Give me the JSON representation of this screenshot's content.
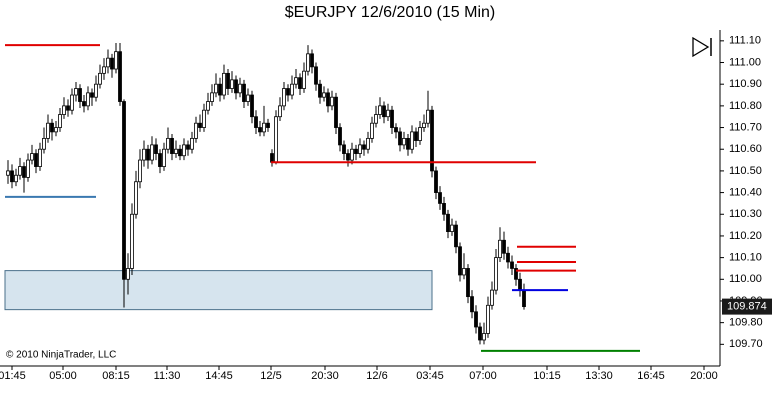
{
  "chart_data": {
    "type": "candlestick",
    "title": "$EURJPY  12/6/2010 (15 Min)",
    "copyright": "© 2010 NinjaTrader, LLC",
    "ylim": [
      109.6,
      111.15
    ],
    "yticks": [
      {
        "value": 111.1,
        "label": "111.10"
      },
      {
        "value": 111.0,
        "label": "111.00"
      },
      {
        "value": 110.9,
        "label": "110.90"
      },
      {
        "value": 110.8,
        "label": "110.80"
      },
      {
        "value": 110.7,
        "label": "110.70"
      },
      {
        "value": 110.6,
        "label": "110.60"
      },
      {
        "value": 110.5,
        "label": "110.50"
      },
      {
        "value": 110.4,
        "label": "110.40"
      },
      {
        "value": 110.3,
        "label": "110.30"
      },
      {
        "value": 110.2,
        "label": "110.20"
      },
      {
        "value": 110.1,
        "label": "110.10"
      },
      {
        "value": 110.0,
        "label": "110.00"
      },
      {
        "value": 109.9,
        "label": "109.90"
      },
      {
        "value": 109.8,
        "label": "109.80"
      },
      {
        "value": 109.7,
        "label": "109.70"
      }
    ],
    "xlim": [
      -2,
      178
    ],
    "xticks": [
      {
        "value": 1,
        "label": "01:45"
      },
      {
        "value": 13.75,
        "label": "05:00"
      },
      {
        "value": 27,
        "label": "08:15"
      },
      {
        "value": 39.75,
        "label": "11:30"
      },
      {
        "value": 52.75,
        "label": "14:45"
      },
      {
        "value": 65.75,
        "label": "12/5"
      },
      {
        "value": 79.25,
        "label": "20:30"
      },
      {
        "value": 92.25,
        "label": "12/6"
      },
      {
        "value": 105.5,
        "label": "03:45"
      },
      {
        "value": 118.75,
        "label": "07:00"
      },
      {
        "value": 134.75,
        "label": "10:15"
      },
      {
        "value": 147.75,
        "label": "13:30"
      },
      {
        "value": 160.75,
        "label": "16:45"
      },
      {
        "value": 174,
        "label": "20:00"
      }
    ],
    "up_color": "#ffffff",
    "down_color": "#000000",
    "last_price": 109.874,
    "zone": {
      "top": 110.04,
      "bottom": 109.86,
      "start": -0.75,
      "end": 106,
      "color": "#d6e4ee"
    },
    "levels": [
      {
        "price": 111.08,
        "start": -0.75,
        "end": 23,
        "color": "#e00000"
      },
      {
        "price": 110.38,
        "start": -0.75,
        "end": 22,
        "color": "#3a78b0"
      },
      {
        "price": 110.54,
        "start": 65.75,
        "end": 132,
        "color": "#e00000"
      },
      {
        "price": 110.15,
        "start": 127.25,
        "end": 142,
        "color": "#e00000"
      },
      {
        "price": 110.08,
        "start": 127.25,
        "end": 142,
        "color": "#e00000"
      },
      {
        "price": 110.04,
        "start": 127,
        "end": 142,
        "color": "#e00000"
      },
      {
        "price": 109.95,
        "start": 126,
        "end": 140,
        "color": "#0000e0"
      },
      {
        "price": 109.67,
        "start": 118.25,
        "end": 158,
        "color": "#008000"
      }
    ],
    "ohlc": [
      [
        110.48,
        110.55,
        110.44,
        110.5
      ],
      [
        110.5,
        110.53,
        110.42,
        110.45
      ],
      [
        110.45,
        110.51,
        110.43,
        110.48
      ],
      [
        110.48,
        110.56,
        110.46,
        110.52
      ],
      [
        110.52,
        110.54,
        110.4,
        110.47
      ],
      [
        110.47,
        110.58,
        110.45,
        110.55
      ],
      [
        110.55,
        110.62,
        110.53,
        110.58
      ],
      [
        110.58,
        110.6,
        110.49,
        110.52
      ],
      [
        110.52,
        110.63,
        110.5,
        110.6
      ],
      [
        110.6,
        110.7,
        110.58,
        110.65
      ],
      [
        110.65,
        110.76,
        110.63,
        110.72
      ],
      [
        110.72,
        110.74,
        110.64,
        110.68
      ],
      [
        110.68,
        110.73,
        110.66,
        110.7
      ],
      [
        110.7,
        110.79,
        110.68,
        110.76
      ],
      [
        110.76,
        110.84,
        110.74,
        110.8
      ],
      [
        110.8,
        110.83,
        110.75,
        110.78
      ],
      [
        110.78,
        110.88,
        110.76,
        110.85
      ],
      [
        110.85,
        110.91,
        110.82,
        110.88
      ],
      [
        110.88,
        110.9,
        110.79,
        110.82
      ],
      [
        110.82,
        110.85,
        110.77,
        110.8
      ],
      [
        110.8,
        110.89,
        110.78,
        110.86
      ],
      [
        110.86,
        110.88,
        110.8,
        110.84
      ],
      [
        110.84,
        110.94,
        110.82,
        110.9
      ],
      [
        110.9,
        110.99,
        110.88,
        110.95
      ],
      [
        110.95,
        111.02,
        110.92,
        110.98
      ],
      [
        110.98,
        111.06,
        110.95,
        111.02
      ],
      [
        111.02,
        111.04,
        110.93,
        110.97
      ],
      [
        110.97,
        111.09,
        110.95,
        111.05
      ],
      [
        111.05,
        111.09,
        110.8,
        110.82
      ],
      [
        110.82,
        110.83,
        109.87,
        110.0
      ],
      [
        110.0,
        110.12,
        109.93,
        110.05
      ],
      [
        110.05,
        110.35,
        110.02,
        110.3
      ],
      [
        110.3,
        110.5,
        110.28,
        110.45
      ],
      [
        110.45,
        110.6,
        110.42,
        110.55
      ],
      [
        110.55,
        110.64,
        110.52,
        110.6
      ],
      [
        110.6,
        110.62,
        110.51,
        110.55
      ],
      [
        110.55,
        110.66,
        110.53,
        110.62
      ],
      [
        110.62,
        110.65,
        110.55,
        110.58
      ],
      [
        110.58,
        110.6,
        110.49,
        110.52
      ],
      [
        110.52,
        110.63,
        110.5,
        110.6
      ],
      [
        110.6,
        110.7,
        110.58,
        110.65
      ],
      [
        110.65,
        110.67,
        110.55,
        110.58
      ],
      [
        110.58,
        110.64,
        110.56,
        110.6
      ],
      [
        110.6,
        110.62,
        110.55,
        110.57
      ],
      [
        110.57,
        110.65,
        110.55,
        110.62
      ],
      [
        110.62,
        110.64,
        110.57,
        110.6
      ],
      [
        110.6,
        110.68,
        110.58,
        110.65
      ],
      [
        110.65,
        110.75,
        110.63,
        110.72
      ],
      [
        110.72,
        110.76,
        110.68,
        110.7
      ],
      [
        110.7,
        110.81,
        110.68,
        110.78
      ],
      [
        110.78,
        110.86,
        110.76,
        110.82
      ],
      [
        110.82,
        110.9,
        110.8,
        110.86
      ],
      [
        110.86,
        110.95,
        110.84,
        110.9
      ],
      [
        110.9,
        110.93,
        110.82,
        110.85
      ],
      [
        110.85,
        110.99,
        110.83,
        110.95
      ],
      [
        110.95,
        110.97,
        110.85,
        110.88
      ],
      [
        110.88,
        110.96,
        110.86,
        110.92
      ],
      [
        110.92,
        110.94,
        110.83,
        110.86
      ],
      [
        110.86,
        110.93,
        110.84,
        110.9
      ],
      [
        110.9,
        110.92,
        110.79,
        110.82
      ],
      [
        110.82,
        110.88,
        110.8,
        110.85
      ],
      [
        110.85,
        110.87,
        110.72,
        110.75
      ],
      [
        110.75,
        110.78,
        110.67,
        110.7
      ],
      [
        110.7,
        110.73,
        110.66,
        110.68
      ],
      [
        110.68,
        110.8,
        110.66,
        110.72
      ],
      [
        110.72,
        110.74,
        110.68,
        110.7
      ],
      [
        110.58,
        110.6,
        110.52,
        110.54
      ],
      [
        110.54,
        110.78,
        110.53,
        110.75
      ],
      [
        110.75,
        110.84,
        110.73,
        110.8
      ],
      [
        110.8,
        110.91,
        110.78,
        110.88
      ],
      [
        110.88,
        110.9,
        110.82,
        110.85
      ],
      [
        110.85,
        110.94,
        110.83,
        110.9
      ],
      [
        110.9,
        110.97,
        110.88,
        110.93
      ],
      [
        110.93,
        110.95,
        110.85,
        110.88
      ],
      [
        110.88,
        111.0,
        110.86,
        110.96
      ],
      [
        110.96,
        111.08,
        110.94,
        111.04
      ],
      [
        111.04,
        111.06,
        110.95,
        110.98
      ],
      [
        110.98,
        111.0,
        110.87,
        110.9
      ],
      [
        110.9,
        110.92,
        110.81,
        110.84
      ],
      [
        110.84,
        110.89,
        110.82,
        110.86
      ],
      [
        110.86,
        110.88,
        110.77,
        110.8
      ],
      [
        110.8,
        110.87,
        110.78,
        110.84
      ],
      [
        110.84,
        110.86,
        110.67,
        110.7
      ],
      [
        110.7,
        110.72,
        110.59,
        110.62
      ],
      [
        110.62,
        110.64,
        110.55,
        110.58
      ],
      [
        110.58,
        110.6,
        110.52,
        110.55
      ],
      [
        110.55,
        110.63,
        110.53,
        110.6
      ],
      [
        110.6,
        110.62,
        110.55,
        110.58
      ],
      [
        110.58,
        110.65,
        110.56,
        110.62
      ],
      [
        110.62,
        110.64,
        110.57,
        110.6
      ],
      [
        110.6,
        110.68,
        110.58,
        110.65
      ],
      [
        110.65,
        110.75,
        110.63,
        110.72
      ],
      [
        110.72,
        110.8,
        110.7,
        110.76
      ],
      [
        110.76,
        110.84,
        110.74,
        110.8
      ],
      [
        110.8,
        110.82,
        110.72,
        110.75
      ],
      [
        110.75,
        110.81,
        110.73,
        110.78
      ],
      [
        110.78,
        110.8,
        110.67,
        110.7
      ],
      [
        110.7,
        110.72,
        110.65,
        110.68
      ],
      [
        110.68,
        110.7,
        110.59,
        110.62
      ],
      [
        110.62,
        110.68,
        110.6,
        110.65
      ],
      [
        110.65,
        110.67,
        110.57,
        110.6
      ],
      [
        110.6,
        110.71,
        110.58,
        110.68
      ],
      [
        110.68,
        110.7,
        110.61,
        110.64
      ],
      [
        110.64,
        110.73,
        110.62,
        110.7
      ],
      [
        110.7,
        110.76,
        110.68,
        110.72
      ],
      [
        110.72,
        110.87,
        110.7,
        110.78
      ],
      [
        110.78,
        110.8,
        110.47,
        110.5
      ],
      [
        110.5,
        110.52,
        110.37,
        110.4
      ],
      [
        110.4,
        110.43,
        110.32,
        110.35
      ],
      [
        110.35,
        110.38,
        110.27,
        110.3
      ],
      [
        110.3,
        110.32,
        110.19,
        110.22
      ],
      [
        110.22,
        110.28,
        110.2,
        110.25
      ],
      [
        110.25,
        110.27,
        110.12,
        110.15
      ],
      [
        110.15,
        110.17,
        109.99,
        110.02
      ],
      [
        110.02,
        110.12,
        110.0,
        110.05
      ],
      [
        110.05,
        110.07,
        109.89,
        109.92
      ],
      [
        109.92,
        109.95,
        109.82,
        109.85
      ],
      [
        109.85,
        109.88,
        109.75,
        109.78
      ],
      [
        109.78,
        109.8,
        109.7,
        109.72
      ],
      [
        109.72,
        109.8,
        109.7,
        109.75
      ],
      [
        109.75,
        109.92,
        109.73,
        109.88
      ],
      [
        109.88,
        109.99,
        109.86,
        109.95
      ],
      [
        109.95,
        110.14,
        109.93,
        110.1
      ],
      [
        110.1,
        110.24,
        110.08,
        110.18
      ],
      [
        110.18,
        110.22,
        110.09,
        110.12
      ],
      [
        110.12,
        110.15,
        110.05,
        110.08
      ],
      [
        110.08,
        110.11,
        110.02,
        110.05
      ],
      [
        110.05,
        110.07,
        109.97,
        110.0
      ],
      [
        110.0,
        110.03,
        109.92,
        109.95
      ],
      [
        109.95,
        109.98,
        109.86,
        109.874
      ]
    ]
  }
}
